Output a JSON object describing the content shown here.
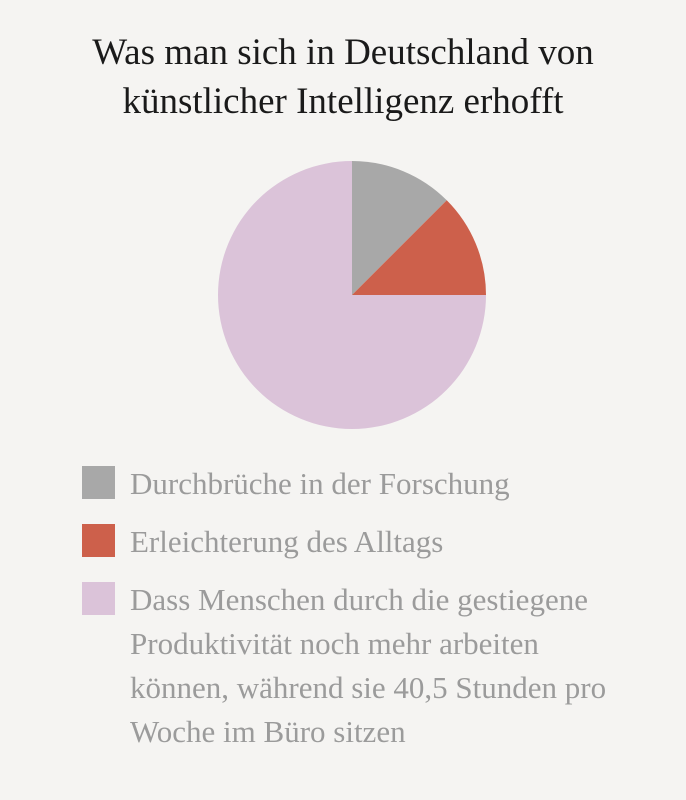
{
  "chart_data": {
    "type": "pie",
    "title_lines": [
      "Was man sich in Deutschland von",
      "künstlicher Intelligenz erhofft"
    ],
    "slices": [
      {
        "label": "Durchbrüche in der Forschung",
        "value": 12.5,
        "color": "#a8a8a8"
      },
      {
        "label": "Erleichterung des Alltags",
        "value": 12.5,
        "color": "#cd604b"
      },
      {
        "label": "Dass Menschen durch die gestiegene Produktivität noch mehr arbeiten können, während sie 40,5 Stunden pro Woche im Büro sitzen",
        "value": 75,
        "color": "#dbc3d9"
      }
    ],
    "legend_position": "bottom"
  }
}
